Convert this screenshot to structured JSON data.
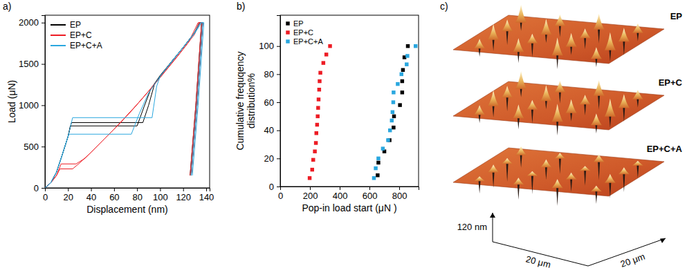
{
  "chart_data": [
    {
      "type": "line",
      "panel_label": "a)",
      "x_label": "Displacement (nm)",
      "y_label": "Load (μN)",
      "xlim": [
        0,
        143
      ],
      "xticks": [
        0,
        20,
        40,
        60,
        80,
        100,
        120,
        140
      ],
      "ylim": [
        0,
        2090
      ],
      "yticks": [
        0,
        500,
        1000,
        1500,
        2000
      ],
      "legend": "top-left",
      "series": [
        {
          "name": "EP",
          "color": "#000000",
          "curves": [
            {
              "x": [
                0,
                5,
                10,
                15,
                20,
                23,
                85,
                90,
                95,
                100,
                110,
                120,
                130,
                135,
                137,
                132,
                127
              ],
              "values": [
                0,
                60,
                190,
                400,
                620,
                790,
                790,
                1000,
                1250,
                1350,
                1530,
                1700,
                1880,
                2000,
                2000,
                1000,
                150
              ]
            },
            {
              "x": [
                0,
                5,
                10,
                15,
                20,
                22,
                80,
                86,
                92,
                100,
                110,
                120,
                130,
                134,
                136,
                131,
                126
              ],
              "values": [
                0,
                60,
                190,
                400,
                620,
                750,
                750,
                980,
                1200,
                1360,
                1530,
                1700,
                1880,
                2000,
                2000,
                1000,
                150
              ]
            }
          ]
        },
        {
          "name": "EP+C",
          "color": "#ed1c24",
          "curves": [
            {
              "x": [
                0,
                5,
                10,
                13,
                24,
                30,
                40,
                50,
                60,
                70,
                80,
                90,
                100,
                110,
                120,
                130,
                134,
                137,
                132,
                127
              ],
              "values": [
                0,
                60,
                150,
                230,
                230,
                300,
                430,
                570,
                710,
                860,
                1010,
                1170,
                1340,
                1510,
                1680,
                1860,
                2000,
                2000,
                1000,
                150
              ]
            },
            {
              "x": [
                0,
                5,
                10,
                14,
                27,
                35,
                45,
                55,
                65,
                75,
                85,
                95,
                105,
                115,
                125,
                133,
                136,
                131,
                126
              ],
              "values": [
                0,
                60,
                150,
                290,
                290,
                360,
                500,
                640,
                780,
                930,
                1090,
                1250,
                1420,
                1590,
                1770,
                2000,
                2000,
                1000,
                150
              ]
            }
          ]
        },
        {
          "name": "EP+C+A",
          "color": "#2aa7df",
          "curves": [
            {
              "x": [
                0,
                5,
                10,
                15,
                20,
                24,
                93,
                97,
                100,
                110,
                120,
                130,
                136,
                138,
                133,
                128
              ],
              "values": [
                0,
                60,
                190,
                400,
                620,
                850,
                850,
                1230,
                1350,
                1520,
                1700,
                1870,
                2000,
                2000,
                1000,
                150
              ]
            },
            {
              "x": [
                0,
                5,
                10,
                15,
                20,
                21,
                75,
                82,
                90,
                100,
                110,
                120,
                130,
                135,
                137,
                132,
                127
              ],
              "values": [
                0,
                60,
                190,
                400,
                620,
                650,
                650,
                900,
                1150,
                1350,
                1530,
                1700,
                1880,
                2000,
                2000,
                1000,
                150
              ]
            }
          ]
        }
      ]
    },
    {
      "type": "scatter",
      "panel_label": "b)",
      "x_label": "Pop-in load start (μN )",
      "y_label": "Cumulative frequqency distribution%",
      "xlim": [
        0,
        930
      ],
      "xticks": [
        0,
        200,
        400,
        600,
        800
      ],
      "ylim": [
        0,
        122
      ],
      "yticks": [
        0,
        20,
        40,
        60,
        80,
        100
      ],
      "legend": "top-left",
      "series": [
        {
          "name": "EP",
          "color": "#000000",
          "marker": "square",
          "x": [
            655,
            660,
            700,
            735,
            762,
            765,
            805,
            820,
            820,
            825,
            835,
            858
          ],
          "values": [
            8,
            17,
            25,
            33,
            42,
            50,
            58,
            67,
            75,
            83,
            92,
            100
          ]
        },
        {
          "name": "EP+C",
          "color": "#ed1c24",
          "marker": "square",
          "x": [
            198,
            215,
            222,
            233,
            240,
            243,
            248,
            252,
            255,
            258,
            262,
            265,
            270,
            290,
            310,
            335
          ],
          "values": [
            6,
            12,
            19,
            25,
            31,
            38,
            44,
            50,
            56,
            62,
            69,
            75,
            81,
            88,
            94,
            100
          ]
        },
        {
          "name": "EP+C+A",
          "color": "#2aa7df",
          "marker": "square",
          "x": [
            630,
            642,
            660,
            690,
            725,
            738,
            750,
            755,
            760,
            762,
            790,
            815,
            850,
            855,
            910
          ],
          "values": [
            6,
            13,
            20,
            27,
            33,
            40,
            47,
            53,
            60,
            67,
            73,
            80,
            87,
            93,
            100
          ]
        }
      ]
    },
    {
      "type": "surface",
      "panel_label": "c)",
      "titles": [
        "EP",
        "EP+C",
        "EP+C+A"
      ],
      "z_label": "120 nm",
      "x_label": "20 μm",
      "y_label": "20 μm"
    }
  ]
}
